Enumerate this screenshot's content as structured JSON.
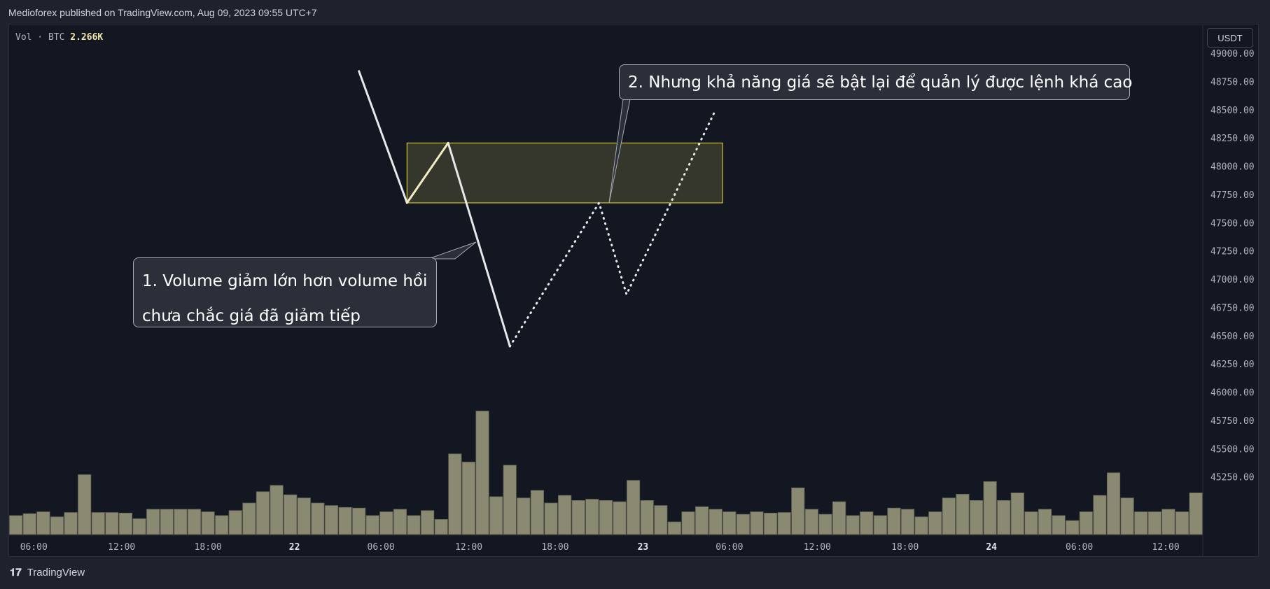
{
  "header": {
    "title": "Medioforex published on TradingView.com, Aug 09, 2023 09:55 UTC+7"
  },
  "legend": {
    "label": "Vol · BTC",
    "value": "2.266K"
  },
  "currency_button": "USDT",
  "callouts": [
    {
      "line1": "1. Volume giảm lớn hơn volume hồi",
      "line2": "chưa chắc giá đã giảm tiếp"
    },
    {
      "text": "2. Nhưng khả năng giá sẽ bật lại để quản lý được lệnh khá cao"
    }
  ],
  "footer": {
    "brand": "TradingView",
    "logo": "tradingview-logo-icon"
  },
  "colors": {
    "volume_bar": "#8a8a72",
    "zone_fill": "#3c3d2e",
    "zone_border": "#f2e33a",
    "line": "#e8e8e8"
  },
  "chart_data": {
    "type": "bar",
    "series": [
      {
        "values": [
          30,
          33,
          36,
          28,
          35,
          95,
          35,
          35,
          34,
          25,
          40,
          40,
          40,
          40,
          36,
          30,
          38,
          50,
          68,
          78,
          63,
          58,
          50,
          46,
          43,
          42,
          30,
          36,
          40,
          30,
          38,
          24,
          128,
          115,
          196,
          60,
          110,
          58,
          70,
          50,
          62,
          54,
          56,
          54,
          52,
          86,
          54,
          46,
          20,
          36,
          44,
          40,
          36,
          32,
          36,
          34,
          35,
          74,
          40,
          32,
          52,
          30,
          36,
          30,
          42,
          40,
          28,
          36,
          58,
          64,
          54,
          84,
          54,
          66,
          36,
          40,
          30,
          22,
          36,
          62,
          98,
          58,
          36,
          36,
          40,
          36,
          66
        ]
      }
    ],
    "x_ticks": [
      {
        "label": "06:00",
        "index": 1.8
      },
      {
        "label": "12:00",
        "index": 8.2
      },
      {
        "label": "18:00",
        "index": 14.5
      },
      {
        "label": "22",
        "index": 20.8
      },
      {
        "label": "06:00",
        "index": 27.1
      },
      {
        "label": "12:00",
        "index": 33.5
      },
      {
        "label": "18:00",
        "index": 39.8
      },
      {
        "label": "23",
        "index": 46.2
      },
      {
        "label": "06:00",
        "index": 52.5
      },
      {
        "label": "12:00",
        "index": 58.9
      },
      {
        "label": "18:00",
        "index": 65.3
      },
      {
        "label": "24",
        "index": 71.6
      },
      {
        "label": "06:00",
        "index": 78
      },
      {
        "label": "12:00",
        "index": 84.3
      }
    ],
    "y_axis": {
      "ticks": [
        "49000.00",
        "48750.00",
        "48500.00",
        "48250.00",
        "48000.00",
        "47750.00",
        "47500.00",
        "47250.00",
        "47000.00",
        "46750.00",
        "46500.00",
        "46250.00",
        "46000.00",
        "45750.00",
        "45500.00",
        "45250.00"
      ],
      "min": 45000,
      "max": 49000
    },
    "zone": {
      "y_low": 47675,
      "y_high": 48205,
      "x_start": 28.5,
      "x_end": 51.5
    },
    "actual_path": [
      {
        "x": 25,
        "y": 48840
      },
      {
        "x": 28.5,
        "y": 47675
      },
      {
        "x": 31.5,
        "y": 48205
      },
      {
        "x": 36,
        "y": 46405
      }
    ],
    "projected_path": [
      {
        "x": 36,
        "y": 46405
      },
      {
        "x": 42.5,
        "y": 47675
      },
      {
        "x": 44.5,
        "y": 46865
      },
      {
        "x": 51,
        "y": 48500
      }
    ]
  }
}
